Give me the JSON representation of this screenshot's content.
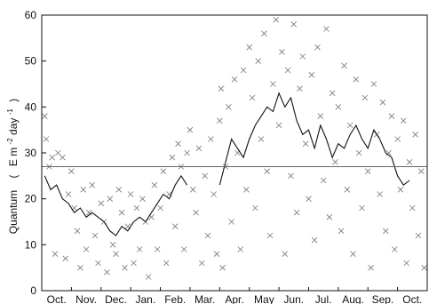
{
  "chart_data": {
    "type": "scatter",
    "title": "",
    "xlabel": "",
    "ylabel_parts": [
      "Quantum",
      "(",
      "E m",
      "-2",
      " day",
      "-1",
      ")"
    ],
    "ylim": [
      0,
      60
    ],
    "yticks": [
      0,
      10,
      20,
      30,
      40,
      50,
      60
    ],
    "xlim": [
      0,
      13
    ],
    "month_labels": [
      "Oct.",
      "Nov.",
      "Dec.",
      "Jan.",
      "Feb.",
      "Mar.",
      "Apr.",
      "May",
      "Jun.",
      "Jul.",
      "Aug.",
      "Sep.",
      "Oct."
    ],
    "reference_line": 27,
    "grid": false,
    "series": [
      {
        "kind": "daily-points",
        "marker": "x",
        "points": [
          [
            0.1,
            38
          ],
          [
            0.15,
            33
          ],
          [
            0.25,
            27
          ],
          [
            0.35,
            29
          ],
          [
            0.45,
            8
          ],
          [
            0.55,
            30
          ],
          [
            0.7,
            29
          ],
          [
            0.8,
            7
          ],
          [
            0.9,
            21
          ],
          [
            1.0,
            26
          ],
          [
            1.1,
            18
          ],
          [
            1.2,
            13
          ],
          [
            1.3,
            5
          ],
          [
            1.4,
            22
          ],
          [
            1.5,
            9
          ],
          [
            1.6,
            17
          ],
          [
            1.7,
            23
          ],
          [
            1.8,
            12
          ],
          [
            1.9,
            6
          ],
          [
            2.0,
            19
          ],
          [
            2.1,
            15
          ],
          [
            2.2,
            4
          ],
          [
            2.3,
            20
          ],
          [
            2.4,
            10
          ],
          [
            2.5,
            8
          ],
          [
            2.6,
            22
          ],
          [
            2.7,
            17
          ],
          [
            2.8,
            5
          ],
          [
            2.9,
            14
          ],
          [
            3.0,
            21
          ],
          [
            3.1,
            6
          ],
          [
            3.2,
            18
          ],
          [
            3.3,
            9
          ],
          [
            3.4,
            20
          ],
          [
            3.5,
            15
          ],
          [
            3.6,
            3
          ],
          [
            3.7,
            16
          ],
          [
            3.8,
            23
          ],
          [
            3.9,
            9
          ],
          [
            4.0,
            18
          ],
          [
            4.1,
            26
          ],
          [
            4.2,
            6
          ],
          [
            4.3,
            21
          ],
          [
            4.4,
            29
          ],
          [
            4.5,
            14
          ],
          [
            4.6,
            32
          ],
          [
            4.7,
            27
          ],
          [
            4.8,
            9
          ],
          [
            4.9,
            30
          ],
          [
            5.0,
            35
          ],
          [
            5.1,
            22
          ],
          [
            5.2,
            17
          ],
          [
            5.3,
            31
          ],
          [
            5.4,
            6
          ],
          [
            5.5,
            25
          ],
          [
            5.6,
            12
          ],
          [
            5.7,
            33
          ],
          [
            5.8,
            21
          ],
          [
            5.9,
            8
          ],
          [
            6.0,
            37
          ],
          [
            6.05,
            44
          ],
          [
            6.1,
            5
          ],
          [
            6.2,
            27
          ],
          [
            6.3,
            40
          ],
          [
            6.4,
            15
          ],
          [
            6.5,
            46
          ],
          [
            6.6,
            30
          ],
          [
            6.7,
            9
          ],
          [
            6.8,
            48
          ],
          [
            6.9,
            22
          ],
          [
            7.0,
            53
          ],
          [
            7.1,
            42
          ],
          [
            7.2,
            18
          ],
          [
            7.3,
            50
          ],
          [
            7.4,
            33
          ],
          [
            7.5,
            56
          ],
          [
            7.6,
            26
          ],
          [
            7.7,
            12
          ],
          [
            7.8,
            45
          ],
          [
            7.9,
            59
          ],
          [
            8.0,
            36
          ],
          [
            8.1,
            52
          ],
          [
            8.2,
            8
          ],
          [
            8.3,
            48
          ],
          [
            8.4,
            25
          ],
          [
            8.5,
            58
          ],
          [
            8.6,
            17
          ],
          [
            8.7,
            44
          ],
          [
            8.8,
            51
          ],
          [
            8.9,
            32
          ],
          [
            9.0,
            20
          ],
          [
            9.1,
            47
          ],
          [
            9.2,
            11
          ],
          [
            9.3,
            53
          ],
          [
            9.4,
            38
          ],
          [
            9.5,
            24
          ],
          [
            9.6,
            57
          ],
          [
            9.7,
            16
          ],
          [
            9.8,
            43
          ],
          [
            9.9,
            28
          ],
          [
            10.0,
            40
          ],
          [
            10.1,
            13
          ],
          [
            10.2,
            49
          ],
          [
            10.3,
            22
          ],
          [
            10.4,
            36
          ],
          [
            10.5,
            8
          ],
          [
            10.6,
            46
          ],
          [
            10.7,
            30
          ],
          [
            10.8,
            18
          ],
          [
            10.9,
            42
          ],
          [
            11.0,
            26
          ],
          [
            11.1,
            5
          ],
          [
            11.2,
            45
          ],
          [
            11.3,
            34
          ],
          [
            11.4,
            21
          ],
          [
            11.5,
            41
          ],
          [
            11.6,
            13
          ],
          [
            11.7,
            30
          ],
          [
            11.8,
            38
          ],
          [
            11.9,
            9
          ],
          [
            12.0,
            33
          ],
          [
            12.1,
            22
          ],
          [
            12.2,
            37
          ],
          [
            12.3,
            6
          ],
          [
            12.4,
            28
          ],
          [
            12.5,
            18
          ],
          [
            12.6,
            34
          ],
          [
            12.7,
            12
          ],
          [
            12.8,
            26
          ],
          [
            12.9,
            5
          ]
        ]
      },
      {
        "kind": "running-mean",
        "segments": [
          [
            [
              0.1,
              25
            ],
            [
              0.3,
              22
            ],
            [
              0.5,
              23
            ],
            [
              0.7,
              20
            ],
            [
              0.9,
              19
            ],
            [
              1.1,
              17
            ],
            [
              1.3,
              18
            ],
            [
              1.5,
              16
            ],
            [
              1.7,
              17
            ],
            [
              1.9,
              16
            ],
            [
              2.1,
              15
            ],
            [
              2.3,
              13
            ],
            [
              2.5,
              12
            ],
            [
              2.7,
              14
            ],
            [
              2.9,
              13
            ],
            [
              3.1,
              15
            ],
            [
              3.3,
              16
            ],
            [
              3.5,
              15
            ],
            [
              3.7,
              17
            ],
            [
              3.9,
              19
            ],
            [
              4.1,
              21
            ],
            [
              4.3,
              20
            ],
            [
              4.5,
              23
            ],
            [
              4.7,
              25
            ],
            [
              4.9,
              23
            ]
          ],
          [
            [
              6.0,
              23
            ],
            [
              6.2,
              28
            ],
            [
              6.4,
              33
            ],
            [
              6.6,
              31
            ],
            [
              6.8,
              29
            ],
            [
              7.0,
              33
            ],
            [
              7.2,
              36
            ],
            [
              7.4,
              38
            ],
            [
              7.6,
              40
            ],
            [
              7.8,
              39
            ],
            [
              8.0,
              43
            ],
            [
              8.2,
              40
            ],
            [
              8.4,
              42
            ],
            [
              8.6,
              37
            ],
            [
              8.8,
              34
            ],
            [
              9.0,
              35
            ],
            [
              9.2,
              31
            ],
            [
              9.4,
              36
            ],
            [
              9.6,
              33
            ],
            [
              9.8,
              29
            ],
            [
              10.0,
              32
            ],
            [
              10.2,
              31
            ],
            [
              10.4,
              34
            ],
            [
              10.6,
              36
            ],
            [
              10.8,
              33
            ],
            [
              11.0,
              31
            ],
            [
              11.2,
              35
            ],
            [
              11.4,
              33
            ],
            [
              11.6,
              30
            ],
            [
              11.8,
              29
            ],
            [
              12.0,
              25
            ],
            [
              12.2,
              23
            ],
            [
              12.4,
              24
            ]
          ]
        ]
      }
    ]
  }
}
